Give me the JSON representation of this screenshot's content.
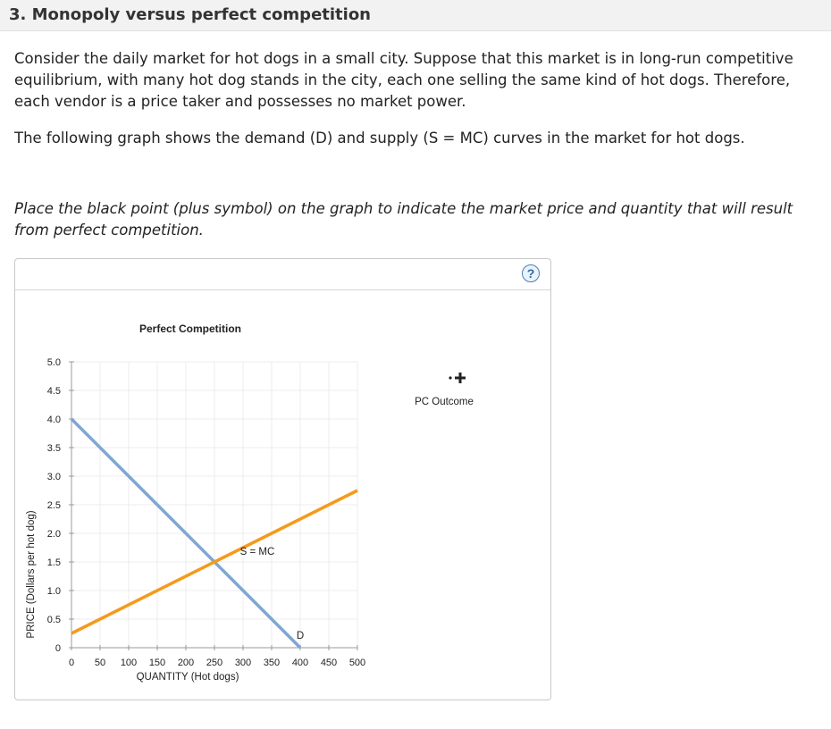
{
  "question": {
    "title": "3. Monopoly versus perfect competition",
    "paragraph1": "Consider the daily market for hot dogs in a small city. Suppose that this market is in long-run competitive equilibrium, with many hot dog stands in the city, each one selling the same kind of hot dogs. Therefore, each vendor is a price taker and possesses no market power.",
    "paragraph2": "The following graph shows the demand (D) and supply (S = MC) curves in the market for hot dogs.",
    "instruction": "Place the black point (plus symbol) on the graph to indicate the market price and quantity that will result from perfect competition."
  },
  "panel": {
    "help_icon": "question-mark-icon",
    "help_label": "?",
    "palette": {
      "tool_icon": "plus-point-icon",
      "tool_label": "PC Outcome"
    }
  },
  "chart_data": {
    "type": "line",
    "title": "Perfect Competition",
    "xlabel": "QUANTITY (Hot dogs)",
    "ylabel": "PRICE (Dollars per hot dog)",
    "xlim": [
      0,
      500
    ],
    "ylim": [
      0,
      5
    ],
    "x_ticks": [
      "0",
      "50",
      "100",
      "150",
      "200",
      "250",
      "300",
      "350",
      "400",
      "450",
      "500"
    ],
    "y_ticks": [
      "0",
      "0.5",
      "1.0",
      "1.5",
      "2.0",
      "2.5",
      "3.0",
      "3.5",
      "4.0",
      "4.5",
      "5.0"
    ],
    "grid": true,
    "series": [
      {
        "name": "D",
        "color": "#7fa6d3",
        "points": [
          [
            0,
            4.0
          ],
          [
            400,
            0
          ]
        ]
      },
      {
        "name": "S = MC",
        "color": "#f59a1b",
        "points": [
          [
            0,
            0.25
          ],
          [
            500,
            2.75
          ]
        ]
      }
    ]
  }
}
